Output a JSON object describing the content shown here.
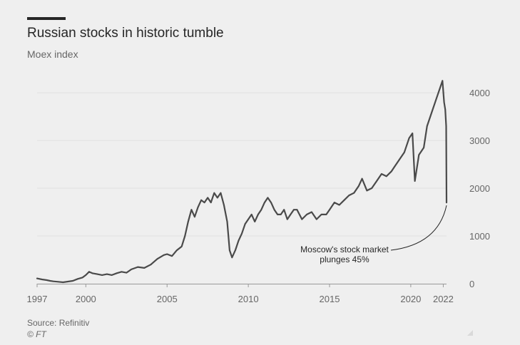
{
  "header": {
    "title": "Russian stocks in historic tumble",
    "subtitle": "Moex index"
  },
  "footer": {
    "source": "Source: Refinitiv",
    "credit": "© FT"
  },
  "colors": {
    "background": "#efefef",
    "line": "#4a4a4a",
    "grid": "#e0e0e0",
    "axis": "#999999",
    "text": "#666666"
  },
  "chart_data": {
    "type": "line",
    "title": "Russian stocks in historic tumble",
    "subtitle": "Moex index",
    "xlabel": "",
    "ylabel": "",
    "xlim": [
      1997,
      2022.2
    ],
    "ylim": [
      0,
      4300
    ],
    "x_ticks": [
      1997,
      2000,
      2005,
      2010,
      2015,
      2020,
      2022
    ],
    "y_ticks": [
      0,
      1000,
      2000,
      3000,
      4000
    ],
    "grid": "horizontal",
    "legend": "none",
    "series": [
      {
        "name": "Moex index",
        "points": [
          [
            1997.0,
            110
          ],
          [
            1997.3,
            90
          ],
          [
            1997.6,
            75
          ],
          [
            1997.8,
            60
          ],
          [
            1998.0,
            50
          ],
          [
            1998.3,
            40
          ],
          [
            1998.6,
            30
          ],
          [
            1998.9,
            45
          ],
          [
            1999.2,
            60
          ],
          [
            1999.5,
            100
          ],
          [
            1999.8,
            130
          ],
          [
            2000.0,
            180
          ],
          [
            2000.2,
            250
          ],
          [
            2000.4,
            220
          ],
          [
            2000.7,
            200
          ],
          [
            2001.0,
            180
          ],
          [
            2001.3,
            200
          ],
          [
            2001.6,
            180
          ],
          [
            2001.9,
            220
          ],
          [
            2002.2,
            250
          ],
          [
            2002.5,
            230
          ],
          [
            2002.8,
            300
          ],
          [
            2003.2,
            350
          ],
          [
            2003.6,
            330
          ],
          [
            2004.0,
            400
          ],
          [
            2004.4,
            520
          ],
          [
            2004.8,
            600
          ],
          [
            2005.0,
            620
          ],
          [
            2005.3,
            580
          ],
          [
            2005.6,
            700
          ],
          [
            2005.9,
            780
          ],
          [
            2006.1,
            1000
          ],
          [
            2006.3,
            1300
          ],
          [
            2006.5,
            1550
          ],
          [
            2006.7,
            1400
          ],
          [
            2006.9,
            1600
          ],
          [
            2007.1,
            1750
          ],
          [
            2007.3,
            1700
          ],
          [
            2007.5,
            1800
          ],
          [
            2007.7,
            1700
          ],
          [
            2007.9,
            1900
          ],
          [
            2008.1,
            1800
          ],
          [
            2008.3,
            1900
          ],
          [
            2008.5,
            1650
          ],
          [
            2008.7,
            1300
          ],
          [
            2008.85,
            700
          ],
          [
            2009.0,
            550
          ],
          [
            2009.2,
            700
          ],
          [
            2009.4,
            900
          ],
          [
            2009.6,
            1050
          ],
          [
            2009.8,
            1250
          ],
          [
            2010.0,
            1350
          ],
          [
            2010.2,
            1450
          ],
          [
            2010.4,
            1300
          ],
          [
            2010.6,
            1450
          ],
          [
            2010.8,
            1550
          ],
          [
            2011.0,
            1700
          ],
          [
            2011.2,
            1800
          ],
          [
            2011.4,
            1700
          ],
          [
            2011.6,
            1550
          ],
          [
            2011.8,
            1450
          ],
          [
            2012.0,
            1450
          ],
          [
            2012.2,
            1550
          ],
          [
            2012.4,
            1350
          ],
          [
            2012.6,
            1450
          ],
          [
            2012.8,
            1550
          ],
          [
            2013.0,
            1550
          ],
          [
            2013.3,
            1350
          ],
          [
            2013.6,
            1450
          ],
          [
            2013.9,
            1500
          ],
          [
            2014.2,
            1350
          ],
          [
            2014.5,
            1450
          ],
          [
            2014.8,
            1450
          ],
          [
            2015.0,
            1550
          ],
          [
            2015.3,
            1700
          ],
          [
            2015.6,
            1650
          ],
          [
            2015.9,
            1750
          ],
          [
            2016.2,
            1850
          ],
          [
            2016.5,
            1900
          ],
          [
            2016.8,
            2050
          ],
          [
            2017.0,
            2200
          ],
          [
            2017.3,
            1950
          ],
          [
            2017.6,
            2000
          ],
          [
            2017.9,
            2150
          ],
          [
            2018.2,
            2300
          ],
          [
            2018.5,
            2250
          ],
          [
            2018.8,
            2350
          ],
          [
            2019.0,
            2450
          ],
          [
            2019.3,
            2600
          ],
          [
            2019.6,
            2750
          ],
          [
            2019.9,
            3050
          ],
          [
            2020.1,
            3150
          ],
          [
            2020.25,
            2150
          ],
          [
            2020.5,
            2700
          ],
          [
            2020.8,
            2850
          ],
          [
            2021.0,
            3300
          ],
          [
            2021.3,
            3600
          ],
          [
            2021.6,
            3900
          ],
          [
            2021.8,
            4100
          ],
          [
            2021.95,
            4250
          ],
          [
            2022.05,
            3800
          ],
          [
            2022.12,
            3650
          ],
          [
            2022.18,
            3300
          ],
          [
            2022.2,
            1700
          ]
        ]
      }
    ],
    "annotations": [
      {
        "id": "crash",
        "text_lines": [
          "Moscow's stock market",
          "plunges 45%"
        ],
        "x": 2022.2,
        "y": 1700
      }
    ]
  }
}
